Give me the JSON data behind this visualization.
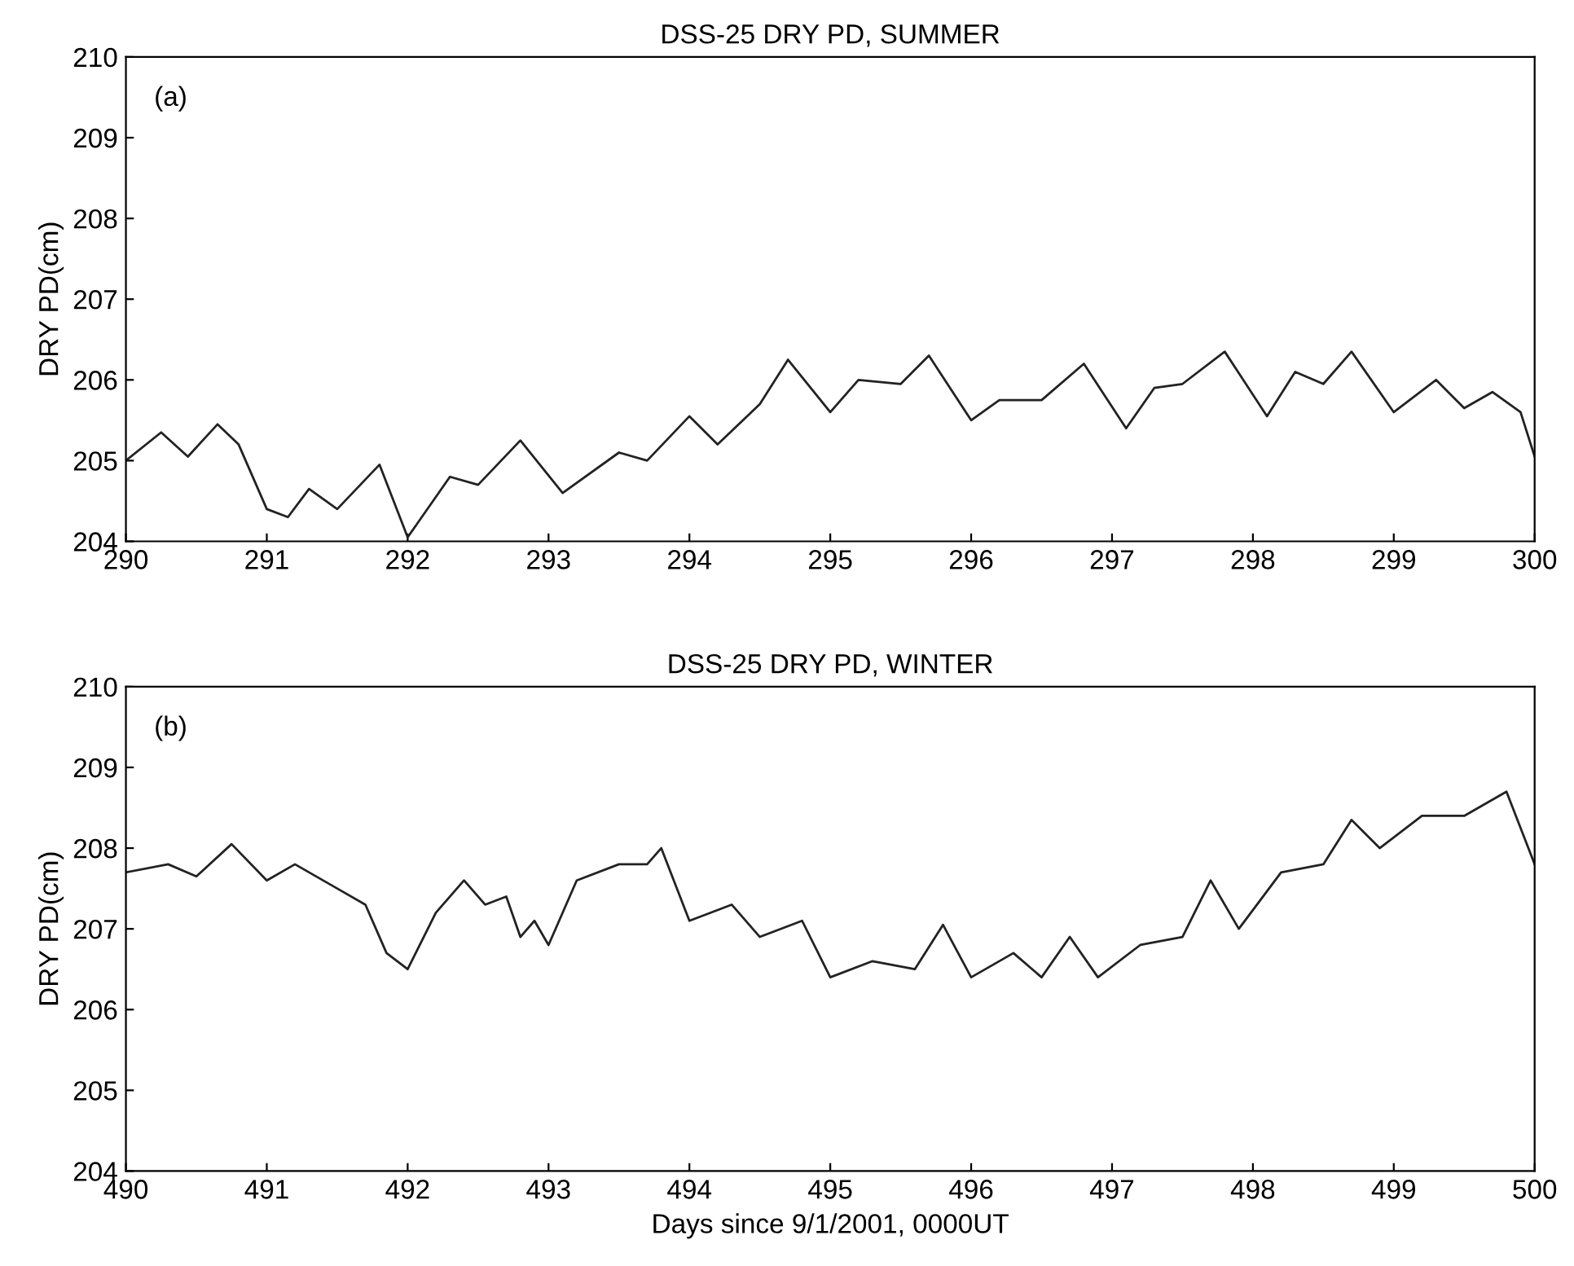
{
  "chart_data": [
    {
      "type": "line",
      "title": "DSS-25 DRY PD, SUMMER",
      "ylabel": "DRY PD(cm)",
      "annotations": [
        "(a)"
      ],
      "x": [
        290.0,
        290.25,
        290.44,
        290.65,
        290.8,
        291.0,
        291.15,
        291.3,
        291.5,
        291.8,
        292.0,
        292.3,
        292.5,
        292.8,
        293.1,
        293.5,
        293.7,
        294.0,
        294.2,
        294.5,
        294.7,
        295.0,
        295.2,
        295.5,
        295.7,
        296.0,
        296.2,
        296.5,
        296.8,
        297.1,
        297.3,
        297.5,
        297.8,
        298.1,
        298.3,
        298.5,
        298.7,
        299.0,
        299.3,
        299.5,
        299.7,
        299.9,
        300.0
      ],
      "series": [
        {
          "color": "#222222",
          "values": [
            205.0,
            205.35,
            205.05,
            205.45,
            205.2,
            204.4,
            204.3,
            204.65,
            204.4,
            204.95,
            204.05,
            204.8,
            204.7,
            205.25,
            204.6,
            205.1,
            205.0,
            205.55,
            205.2,
            205.7,
            206.25,
            205.6,
            206.0,
            205.95,
            206.3,
            205.5,
            205.75,
            205.75,
            206.2,
            205.4,
            205.9,
            205.95,
            206.35,
            205.55,
            206.1,
            205.95,
            206.35,
            205.6,
            206.0,
            205.65,
            205.85,
            205.6,
            205.05
          ]
        }
      ],
      "xlim": [
        290,
        300
      ],
      "ylim": [
        204,
        210
      ],
      "xticks": [
        290,
        291,
        292,
        293,
        294,
        295,
        296,
        297,
        298,
        299,
        300
      ],
      "yticks": [
        204,
        205,
        206,
        207,
        208,
        209,
        210
      ],
      "grid": false
    },
    {
      "type": "line",
      "title": "DSS-25 DRY PD, WINTER",
      "ylabel": "DRY PD(cm)",
      "xlabel": "Days since 9/1/2001, 0000UT",
      "annotations": [
        "(b)"
      ],
      "x": [
        490.0,
        490.3,
        490.5,
        490.75,
        491.0,
        491.2,
        491.5,
        491.7,
        491.85,
        492.0,
        492.2,
        492.4,
        492.55,
        492.7,
        492.8,
        492.9,
        493.0,
        493.2,
        493.5,
        493.7,
        493.8,
        494.0,
        494.3,
        494.5,
        494.8,
        495.0,
        495.3,
        495.6,
        495.8,
        496.0,
        496.3,
        496.5,
        496.7,
        496.9,
        497.2,
        497.5,
        497.7,
        497.9,
        498.2,
        498.5,
        498.7,
        498.9,
        499.2,
        499.5,
        499.8,
        500.0
      ],
      "series": [
        {
          "color": "#222222",
          "values": [
            207.7,
            207.8,
            207.65,
            208.05,
            207.6,
            207.8,
            207.5,
            207.3,
            206.7,
            206.5,
            207.2,
            207.6,
            207.3,
            207.4,
            206.9,
            207.1,
            206.8,
            207.6,
            207.8,
            207.8,
            208.0,
            207.1,
            207.3,
            206.9,
            207.1,
            206.4,
            206.6,
            206.5,
            207.05,
            206.4,
            206.7,
            206.4,
            206.9,
            206.4,
            206.8,
            206.9,
            207.6,
            207.0,
            207.7,
            207.8,
            208.35,
            208.0,
            208.4,
            208.4,
            208.7,
            207.8
          ]
        }
      ],
      "xlim": [
        490,
        500
      ],
      "ylim": [
        204,
        210
      ],
      "xticks": [
        490,
        491,
        492,
        493,
        494,
        495,
        496,
        497,
        498,
        499,
        500
      ],
      "yticks": [
        204,
        205,
        206,
        207,
        208,
        209,
        210
      ],
      "grid": false
    }
  ]
}
